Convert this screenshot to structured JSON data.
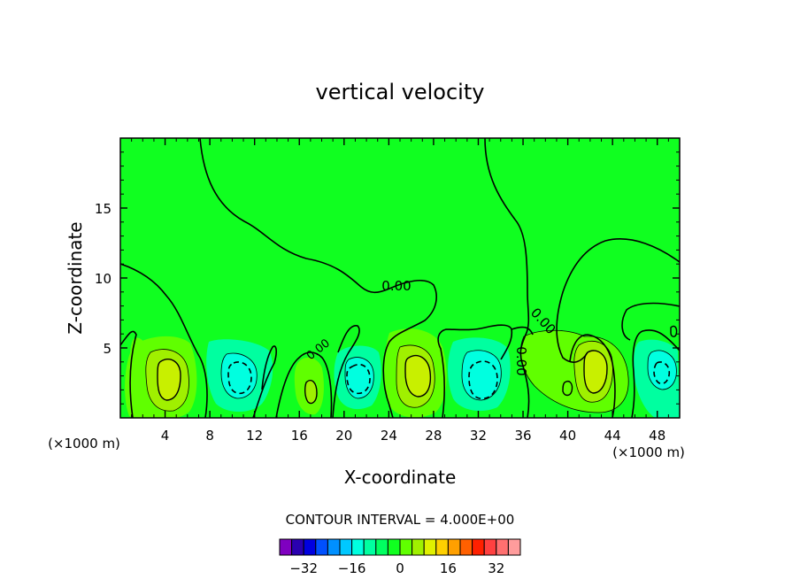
{
  "chart_data": {
    "type": "contour",
    "title": "vertical velocity",
    "xlabel": "X-coordinate",
    "ylabel": "Z-coordinate",
    "x_unit_left": "(×1000 m)",
    "x_unit_right": "(×1000 m)",
    "xlim": [
      0,
      50
    ],
    "ylim": [
      0,
      20
    ],
    "x_ticks": [
      4,
      8,
      12,
      16,
      20,
      24,
      28,
      32,
      36,
      40,
      44,
      48
    ],
    "y_ticks": [
      5,
      10,
      15
    ],
    "contour_label": "0.00",
    "contour_interval_text": "CONTOUR INTERVAL = 4.000E+00",
    "colorbar": {
      "tick_labels": [
        "−32",
        "−16",
        "0",
        "16",
        "32"
      ],
      "tick_values": [
        -32,
        -16,
        0,
        16,
        32
      ],
      "colors": [
        "#7f00c0",
        "#2a00b0",
        "#0000e0",
        "#0050ff",
        "#0090ff",
        "#00c8ff",
        "#00ffe0",
        "#00ffa0",
        "#00ff60",
        "#10ff20",
        "#60ff00",
        "#a0f000",
        "#e0f000",
        "#ffd000",
        "#ffa000",
        "#ff6000",
        "#ff2000",
        "#ff4040",
        "#ff7070",
        "#ff9c9c"
      ]
    },
    "background_color": "#10ff20",
    "features": [
      {
        "type": "updraft_max",
        "x": 4.8,
        "z": 2.7,
        "level": 12
      },
      {
        "type": "downdraft_min",
        "x": 10.5,
        "z": 2.6,
        "level": -8
      },
      {
        "type": "downdraft_min",
        "x": 20.5,
        "z": 2.8,
        "level": -8
      },
      {
        "type": "updraft_max",
        "x": 26.7,
        "z": 2.9,
        "level": 12
      },
      {
        "type": "downdraft_min",
        "x": 32.6,
        "z": 2.8,
        "level": -8
      },
      {
        "type": "updraft_max",
        "x": 42.3,
        "z": 3.5,
        "level": 12
      },
      {
        "type": "downdraft_min",
        "x": 48,
        "z": 3.1,
        "level": -8
      }
    ]
  }
}
